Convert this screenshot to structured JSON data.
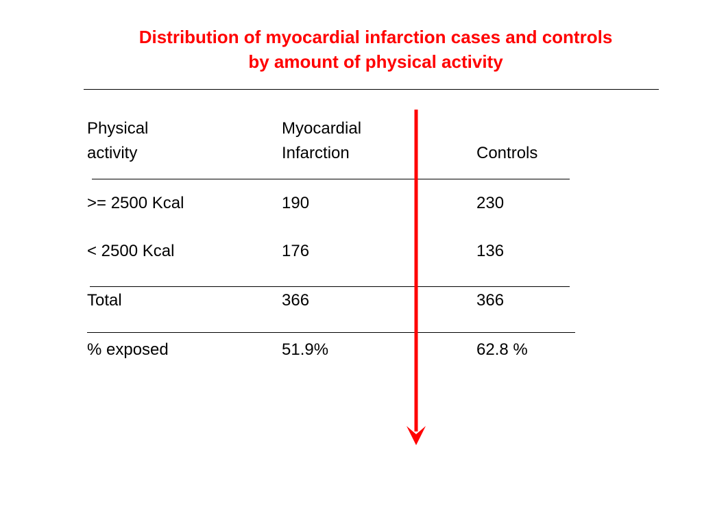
{
  "title_line1": "Distribution of myocardial infarction  cases and controls",
  "title_line2": "by amount of physical activity",
  "table": {
    "header": {
      "col1_line1": "Physical",
      "col1_line2": "activity",
      "col2_line1": "Myocardial",
      "col2_line2": "Infarction",
      "col3_line2": "Controls"
    },
    "rows": [
      {
        "label": ">= 2500 Kcal",
        "mi": "190",
        "controls": "230"
      },
      {
        "label": "< 2500 Kcal",
        "mi": "176",
        "controls": "136"
      },
      {
        "label": "Total",
        "mi": "366",
        "controls": "366"
      },
      {
        "label": "% exposed",
        "mi": "51.9%",
        "controls": "62.8 %"
      }
    ]
  },
  "colors": {
    "title": "#ff0000",
    "arrow": "#ff0000",
    "text": "#000000"
  },
  "icons": {
    "arrow": "arrow-down-icon"
  }
}
